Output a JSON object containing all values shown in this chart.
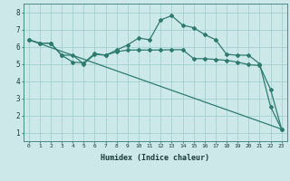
{
  "xlabel": "Humidex (Indice chaleur)",
  "background_color": "#cce8e8",
  "grid_color": "#99cccc",
  "line_color": "#2e7b6e",
  "xlim": [
    -0.5,
    23.5
  ],
  "ylim": [
    0.5,
    8.5
  ],
  "xticks": [
    0,
    1,
    2,
    3,
    4,
    5,
    6,
    7,
    8,
    9,
    10,
    11,
    12,
    13,
    14,
    15,
    16,
    17,
    18,
    19,
    20,
    21,
    22,
    23
  ],
  "yticks": [
    1,
    2,
    3,
    4,
    5,
    6,
    7,
    8
  ],
  "series": {
    "line_straight": {
      "x": [
        0,
        23
      ],
      "y": [
        6.4,
        1.2
      ],
      "marker": null,
      "markersize": 0,
      "linewidth": 0.9
    },
    "line_flat": {
      "x": [
        0,
        1,
        2,
        3,
        4,
        5,
        6,
        7,
        8,
        9,
        10,
        11,
        12,
        13,
        14,
        15,
        16,
        17,
        18,
        19,
        20,
        21,
        22,
        23
      ],
      "y": [
        6.4,
        6.2,
        6.2,
        5.5,
        5.5,
        5.0,
        5.55,
        5.5,
        5.7,
        5.8,
        5.8,
        5.8,
        5.8,
        5.82,
        5.82,
        5.3,
        5.3,
        5.25,
        5.2,
        5.1,
        4.95,
        4.9,
        3.5,
        1.2
      ],
      "marker": "D",
      "markersize": 2.0,
      "linewidth": 0.9
    },
    "line_peak": {
      "x": [
        0,
        1,
        2,
        3,
        4,
        5,
        6,
        7,
        8,
        9,
        10,
        11,
        12,
        13,
        14,
        15,
        16,
        17,
        18,
        19,
        20,
        21,
        22,
        23
      ],
      "y": [
        6.4,
        6.2,
        6.2,
        5.5,
        5.1,
        5.05,
        5.6,
        5.5,
        5.8,
        6.1,
        6.5,
        6.4,
        7.55,
        7.8,
        7.25,
        7.1,
        6.7,
        6.4,
        5.55,
        5.5,
        5.5,
        5.0,
        2.5,
        1.2
      ],
      "marker": "D",
      "markersize": 2.0,
      "linewidth": 0.9
    }
  }
}
